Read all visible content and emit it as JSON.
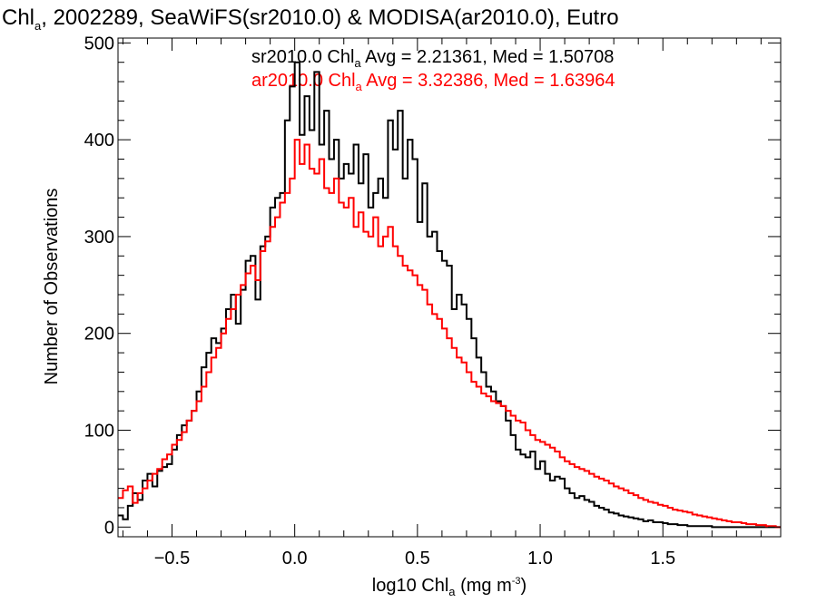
{
  "colors": {
    "sr2010": "#000000",
    "ar2010": "#ff0000",
    "axis": "#000000",
    "background": "#ffffff"
  },
  "title": {
    "prefix": "Chl",
    "sub": "a",
    "rest": ", 2002289, SeaWiFS(sr2010.0) & MODISA(ar2010.0), Eutro"
  },
  "xlabel": {
    "prefix": "log10 Chl",
    "sub": "a",
    "mid": " (mg m",
    "sup": "-3",
    "suffix": ")"
  },
  "ylabel": "Number of Observations",
  "legend": [
    {
      "series": "sr2010",
      "prefix": "sr2010.0 Chl",
      "sub": "a",
      "stats": " Avg = 2.21361, Med = 1.50708",
      "color": "#000000"
    },
    {
      "series": "ar2010",
      "prefix": "ar2010.0 Chl",
      "sub": "a",
      "stats": " Avg = 3.32386, Med = 1.63964",
      "color": "#ff0000"
    }
  ],
  "chart_data": {
    "type": "line",
    "style": "step histogram",
    "xlim": [
      -0.72,
      1.98
    ],
    "ylim": [
      -10,
      505
    ],
    "xticks": [
      -0.5,
      0.0,
      0.5,
      1.0,
      1.5
    ],
    "xtick_labels": [
      "−0.5",
      "0.0",
      "0.5",
      "1.0",
      "1.5"
    ],
    "yticks": [
      0,
      100,
      200,
      300,
      400,
      500
    ],
    "ytick_labels": [
      "0",
      "100",
      "200",
      "300",
      "400",
      "500"
    ],
    "grid": false,
    "legend_placement": "top",
    "bin_start": -0.72,
    "bin_width": 0.02,
    "series": [
      {
        "key": "sr2010",
        "values": [
          12,
          8,
          22,
          35,
          28,
          48,
          55,
          42,
          58,
          62,
          65,
          80,
          95,
          105,
          110,
          120,
          140,
          165,
          180,
          195,
          190,
          205,
          225,
          240,
          210,
          245,
          275,
          280,
          235,
          290,
          300,
          330,
          340,
          345,
          420,
          455,
          480,
          405,
          445,
          410,
          470,
          395,
          430,
          380,
          400,
          360,
          375,
          365,
          395,
          355,
          385,
          330,
          345,
          360,
          340,
          420,
          390,
          430,
          360,
          400,
          380,
          315,
          355,
          300,
          305,
          285,
          275,
          270,
          225,
          240,
          230,
          215,
          195,
          175,
          160,
          145,
          140,
          130,
          125,
          110,
          95,
          80,
          75,
          72,
          78,
          60,
          68,
          55,
          48,
          52,
          50,
          40,
          35,
          30,
          32,
          28,
          26,
          22,
          20,
          18,
          15,
          14,
          12,
          11,
          10,
          9,
          8,
          6,
          7,
          5,
          5,
          4,
          3,
          3,
          2,
          2,
          1,
          1,
          1,
          1,
          1,
          0,
          0,
          0,
          0,
          0,
          0,
          0,
          0,
          0,
          0,
          0,
          0,
          0,
          0
        ],
        "color": "#000000"
      },
      {
        "key": "ar2010",
        "values": [
          30,
          38,
          42,
          25,
          35,
          40,
          48,
          55,
          60,
          70,
          75,
          85,
          90,
          98,
          110,
          120,
          130,
          145,
          160,
          175,
          185,
          200,
          215,
          225,
          240,
          250,
          262,
          270,
          255,
          285,
          295,
          310,
          320,
          335,
          345,
          360,
          400,
          375,
          395,
          370,
          365,
          380,
          350,
          345,
          360,
          335,
          330,
          340,
          310,
          325,
          305,
          300,
          320,
          290,
          300,
          310,
          290,
          280,
          270,
          265,
          260,
          250,
          245,
          230,
          220,
          215,
          205,
          195,
          185,
          175,
          170,
          160,
          150,
          145,
          138,
          135,
          130,
          128,
          125,
          120,
          115,
          110,
          108,
          100,
          95,
          90,
          88,
          85,
          82,
          78,
          72,
          68,
          65,
          62,
          60,
          58,
          55,
          52,
          50,
          48,
          45,
          42,
          40,
          38,
          35,
          33,
          30,
          28,
          26,
          25,
          23,
          22,
          20,
          18,
          17,
          16,
          15,
          13,
          12,
          11,
          10,
          9,
          8,
          7,
          6,
          5,
          5,
          4,
          3,
          3,
          2,
          2,
          1,
          1,
          0
        ],
        "color": "#ff0000"
      }
    ]
  }
}
